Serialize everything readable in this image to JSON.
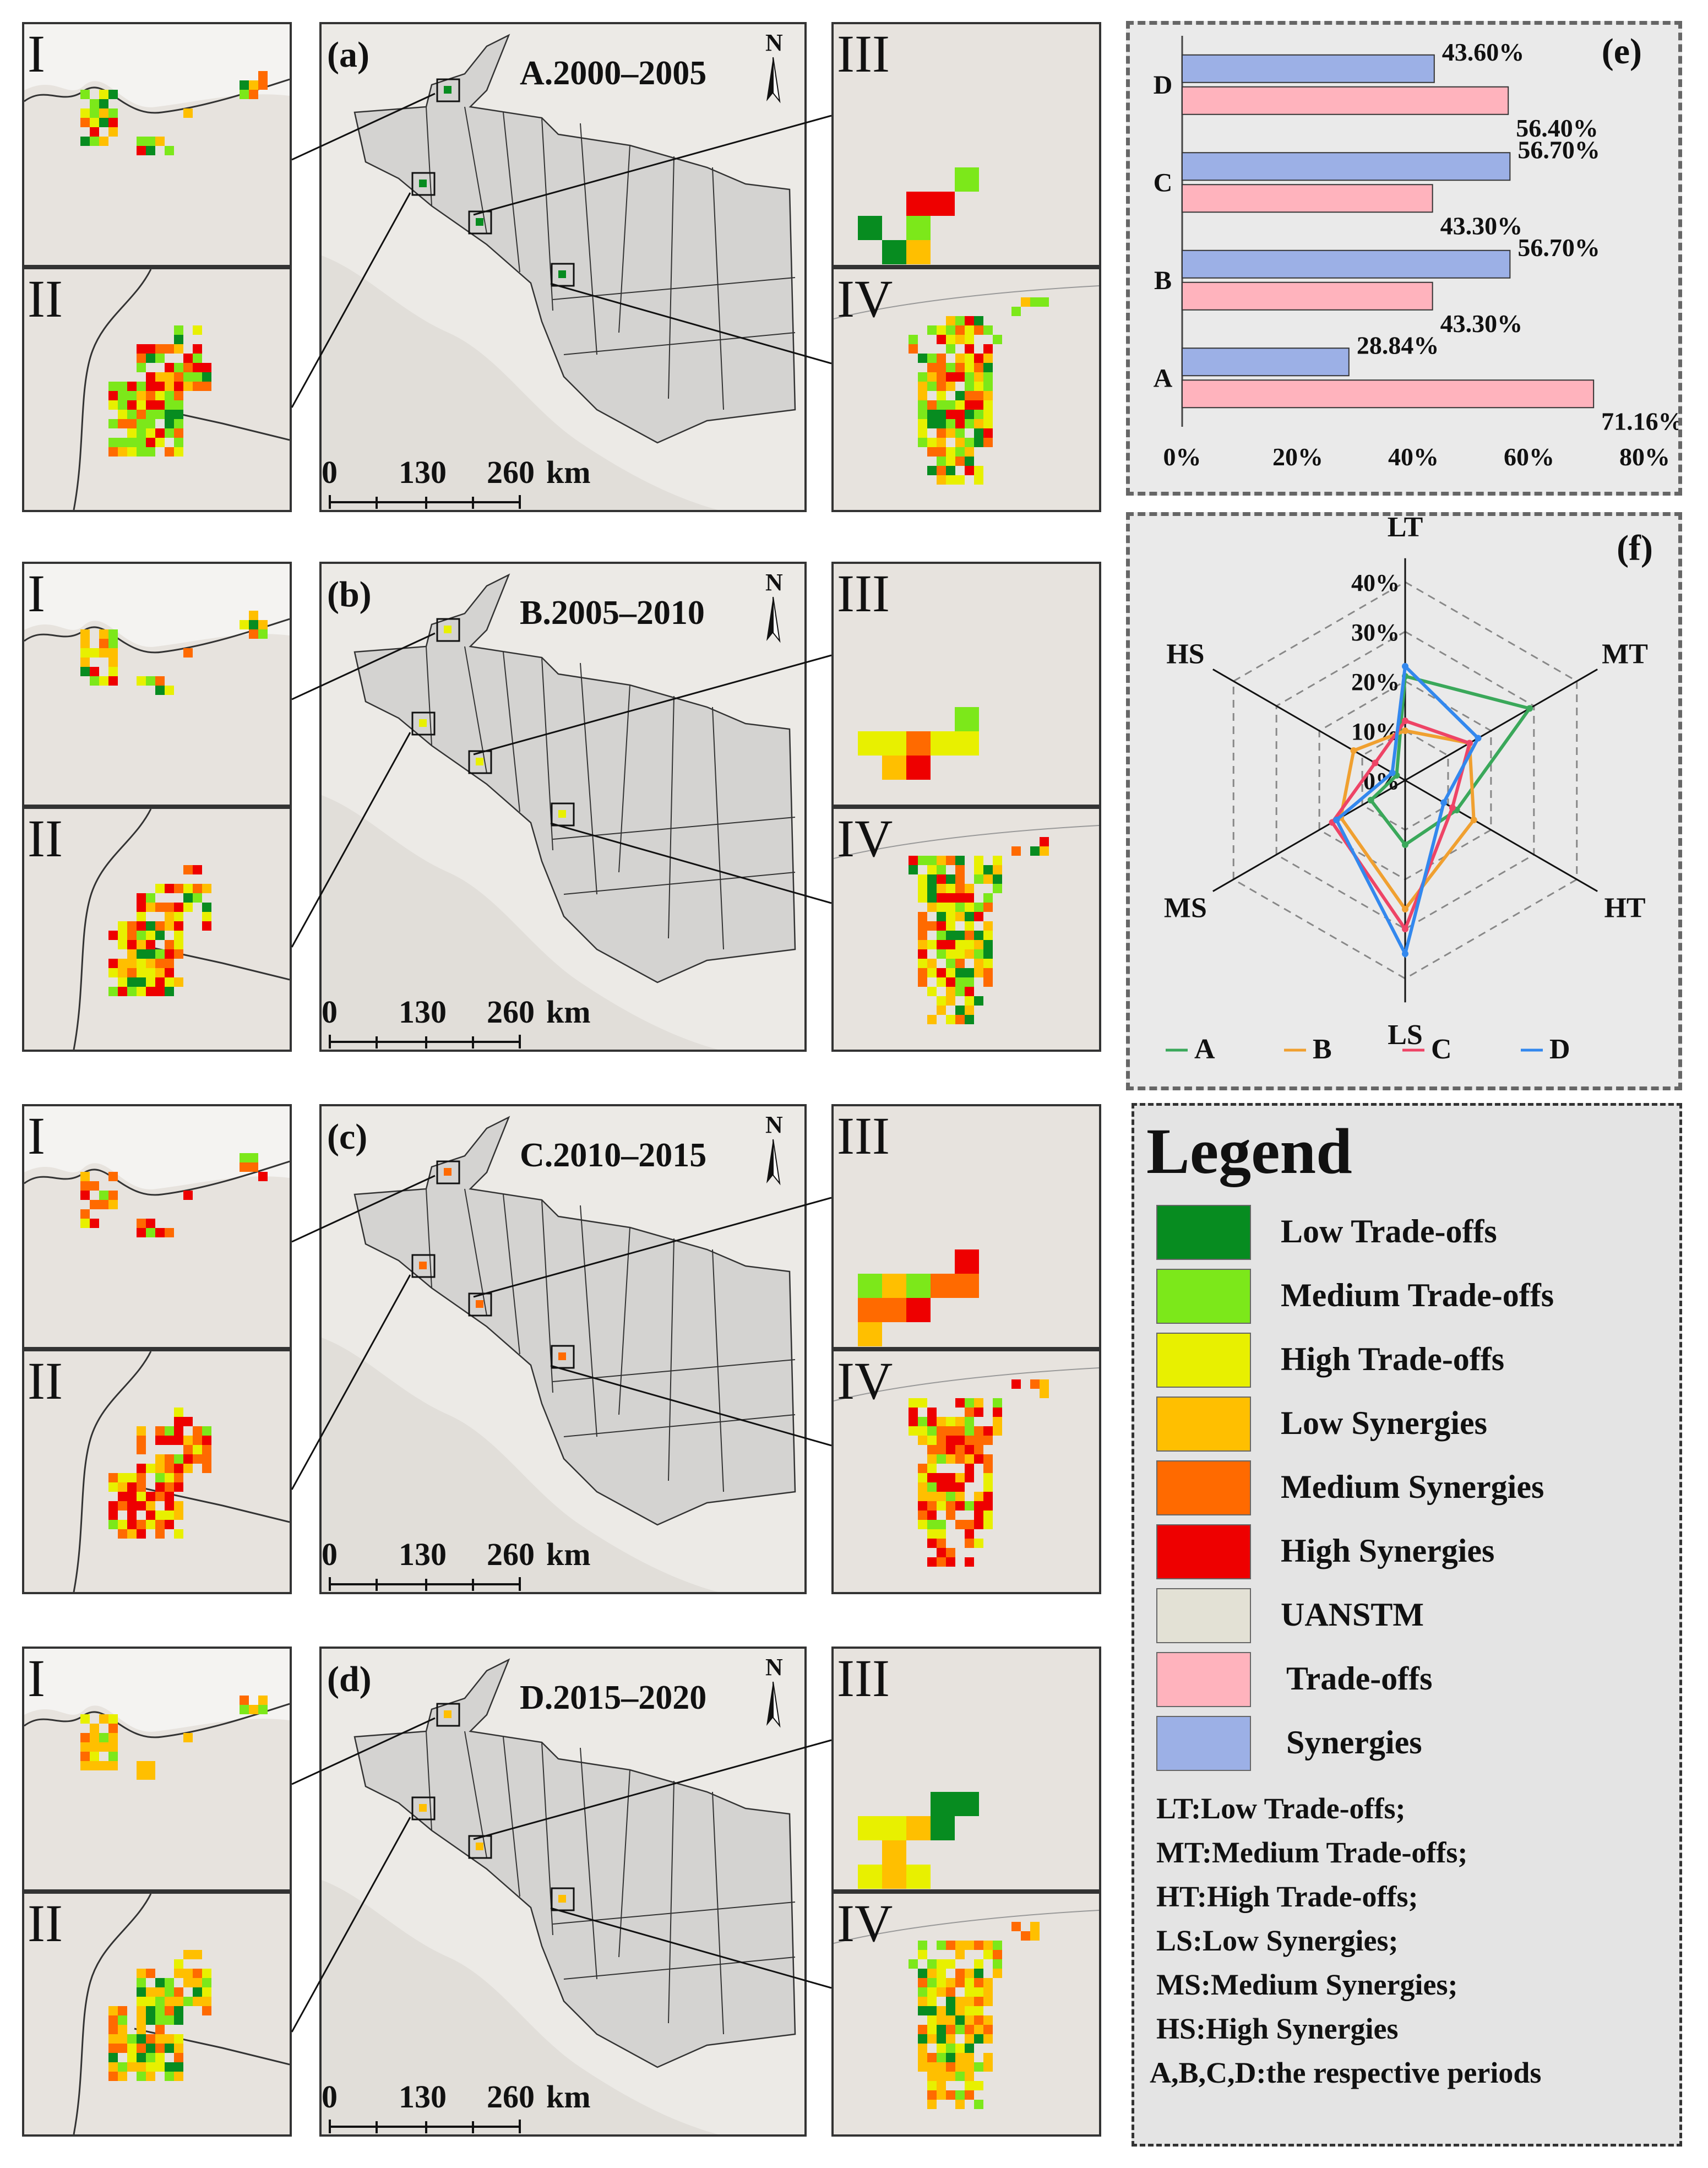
{
  "colors": {
    "low_tradeoffs": "#078c20",
    "medium_tradeoffs": "#7ce81a",
    "high_tradeoffs": "#e8f000",
    "low_synergies": "#ffbf00",
    "medium_synergies": "#ff6a00",
    "high_synergies": "#ee0000",
    "uanstm": "#e3e1d5",
    "tradeoffs": "#ffb3bd",
    "synergies": "#9cb0e6",
    "series_A": "#3aa85a",
    "series_B": "#f0a030",
    "series_C": "#ee4466",
    "series_D": "#3388ee"
  },
  "rows": [
    {
      "panel": "(a)",
      "title": "A.2000–2005",
      "insets": {
        "I": "I",
        "II": "II",
        "III": "III",
        "IV": "IV"
      },
      "scale": {
        "s0": "0",
        "s1": "130",
        "s2": "260",
        "unit": "km"
      },
      "north": "N"
    },
    {
      "panel": "(b)",
      "title": "B.2005–2010",
      "insets": {
        "I": "I",
        "II": "II",
        "III": "III",
        "IV": "IV"
      },
      "scale": {
        "s0": "0",
        "s1": "130",
        "s2": "260",
        "unit": "km"
      },
      "north": "N"
    },
    {
      "panel": "(c)",
      "title": "C.2010–2015",
      "insets": {
        "I": "I",
        "II": "II",
        "III": "III",
        "IV": "IV"
      },
      "scale": {
        "s0": "0",
        "s1": "130",
        "s2": "260",
        "unit": "km"
      },
      "north": "N"
    },
    {
      "panel": "(d)",
      "title": "D.2015–2020",
      "insets": {
        "I": "I",
        "II": "II",
        "III": "III",
        "IV": "IV"
      },
      "scale": {
        "s0": "0",
        "s1": "130",
        "s2": "260",
        "unit": "km"
      },
      "north": "N"
    }
  ],
  "chart_data": [
    {
      "panel": "(e)",
      "type": "bar",
      "orientation": "horizontal",
      "categories": [
        "A",
        "B",
        "C",
        "D"
      ],
      "series": [
        {
          "name": "Synergies",
          "values": [
            28.84,
            56.7,
            56.7,
            43.6
          ]
        },
        {
          "name": "Trade-offs",
          "values": [
            71.16,
            43.3,
            43.3,
            56.4
          ]
        }
      ],
      "value_labels": {
        "Synergies": [
          "28.84%",
          "56.70%",
          "56.70%",
          "43.60%"
        ],
        "Trade-offs": [
          "71.16%",
          "43.30%",
          "43.30%",
          "56.40%"
        ]
      },
      "xlim": [
        0,
        80
      ],
      "xticks": [
        "0%",
        "20%",
        "40%",
        "60%",
        "80%"
      ]
    },
    {
      "panel": "(f)",
      "type": "radar",
      "axes": [
        "LT",
        "MT",
        "HT",
        "LS",
        "MS",
        "HS"
      ],
      "rlim": [
        0,
        40
      ],
      "rticks": [
        "0%",
        "10%",
        "20%",
        "30%",
        "40%"
      ],
      "series": [
        {
          "name": "A",
          "values": [
            21,
            29,
            12,
            13,
            8,
            2
          ]
        },
        {
          "name": "B",
          "values": [
            10,
            15,
            16,
            26,
            15,
            12
          ]
        },
        {
          "name": "C",
          "values": [
            12,
            15,
            11,
            30,
            17,
            7
          ]
        },
        {
          "name": "D",
          "values": [
            23,
            17,
            9,
            35,
            16,
            3
          ]
        }
      ]
    }
  ],
  "legend": {
    "title": "Legend",
    "items": [
      {
        "label": "Low Trade-offs",
        "color_key": "low_tradeoffs"
      },
      {
        "label": "Medium Trade-offs",
        "color_key": "medium_tradeoffs"
      },
      {
        "label": "High Trade-offs",
        "color_key": "high_tradeoffs"
      },
      {
        "label": "Low Synergies",
        "color_key": "low_synergies"
      },
      {
        "label": "Medium Synergies",
        "color_key": "medium_synergies"
      },
      {
        "label": "High Synergies",
        "color_key": "high_synergies"
      },
      {
        "label": "UANSTM",
        "color_key": "uanstm"
      },
      {
        "label": "Trade-offs",
        "color_key": "tradeoffs"
      },
      {
        "label": "Synergies",
        "color_key": "synergies"
      }
    ],
    "abbreviations": [
      "LT:Low Trade-offs;",
      "MT:Medium Trade-offs;",
      "HT:High Trade-offs;",
      "LS:Low Synergies;",
      "MS:Medium Synergies;",
      "HS:High Synergies",
      "A,B,C,D:the respective periods"
    ]
  }
}
